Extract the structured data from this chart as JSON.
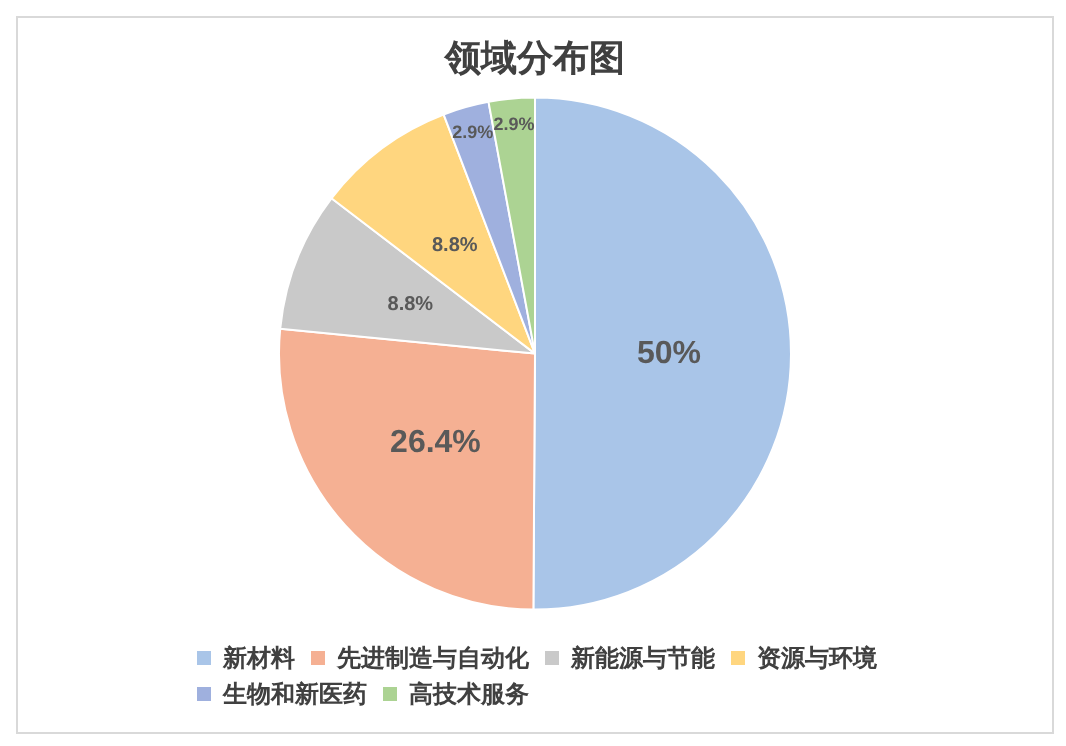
{
  "chart_data": {
    "type": "pie",
    "title": "领域分布图",
    "categories": [
      "新材料",
      "先进制造与自动化",
      "新能源与节能",
      "资源与环境",
      "生物和新医药",
      "高技术服务"
    ],
    "values": [
      50,
      26.4,
      8.8,
      8.8,
      2.9,
      2.9
    ],
    "colors": [
      "#a9c5e8",
      "#f5b093",
      "#c9c9c9",
      "#ffd67f",
      "#9fb0de",
      "#acd393"
    ],
    "value_labels": [
      "50%",
      "26.4%",
      "8.8%",
      "8.8%",
      "2.9%",
      "2.9%"
    ],
    "legend": "bottom"
  }
}
